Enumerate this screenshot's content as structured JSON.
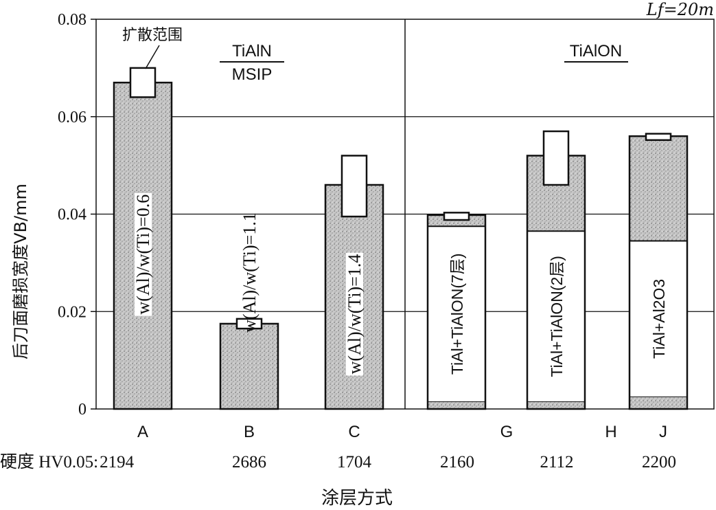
{
  "chart_data": {
    "type": "bar",
    "title": "",
    "xlabel": "涂层方式",
    "ylabel": "后刀面磨损宽度VB/mm",
    "ylim": [
      0,
      0.08
    ],
    "yticks": [
      "0",
      "0.02",
      "0.04",
      "0.06",
      "0.08"
    ],
    "grid": true,
    "corner_label": "Lf=20m",
    "scatter_label": "扩散范围",
    "groups": [
      {
        "label": "TiAlN",
        "sublabel": "MSIP",
        "categories": [
          "A",
          "B",
          "C"
        ]
      },
      {
        "label": "TiAlON",
        "categories": [
          "G",
          "H",
          "J"
        ]
      }
    ],
    "categories": [
      "A",
      "B",
      "C",
      "G",
      "H",
      "J"
    ],
    "hardness_label": "硬度 HV0.05:",
    "hardness": [
      "2194",
      "2686",
      "1704",
      "2160",
      "2112",
      "2200"
    ],
    "bars": [
      {
        "category": "A",
        "value": 0.067,
        "range": [
          0.064,
          0.07
        ],
        "fill": "stipple",
        "inner_label": "w(Al)/w(Ti)=0.6"
      },
      {
        "category": "B",
        "value": 0.0175,
        "range": [
          0.0165,
          0.0185
        ],
        "fill": "stipple",
        "inner_label": "w(Al)/w(Ti)=1.1"
      },
      {
        "category": "C",
        "value": 0.046,
        "range": [
          0.0395,
          0.052
        ],
        "fill": "stipple",
        "inner_label": "w(Al)/w(Ti)=1.4"
      },
      {
        "category": "G",
        "value": 0.0398,
        "range": [
          0.0388,
          0.0403
        ],
        "fill": "layered",
        "split": 0.0375,
        "base": 0.0015,
        "inner_label": "TiAl+TiAlON(7层)"
      },
      {
        "category": "H",
        "value": 0.052,
        "range": [
          0.046,
          0.057
        ],
        "fill": "layered",
        "split": 0.0365,
        "base": 0.0015,
        "inner_label": "TiAl+TiAlON(2层)"
      },
      {
        "category": "J",
        "value": 0.056,
        "range": [
          0.0552,
          0.0565
        ],
        "fill": "layered",
        "split": 0.0345,
        "base": 0.0025,
        "inner_label": "TiAl+Al2O3"
      }
    ],
    "colors": {
      "stipple": "#bdbdbd",
      "line": "#111111",
      "background": "#ffffff"
    }
  }
}
